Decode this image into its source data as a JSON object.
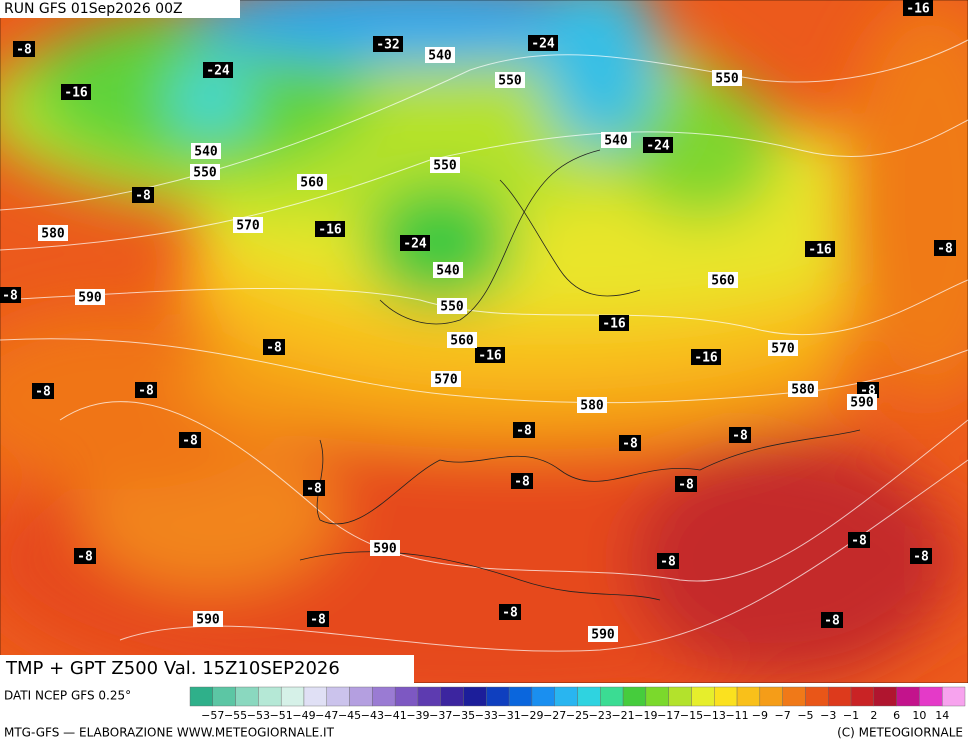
{
  "header": {
    "run": "RUN GFS 01Sep2026 00Z"
  },
  "map": {
    "temperature_labels": [
      "-8",
      "-16",
      "-24",
      "-32",
      "-24",
      "-16",
      "-24",
      "-8",
      "-16",
      "-24",
      "-16",
      "-8",
      "-8",
      "-16",
      "-8",
      "-16",
      "-16",
      "-8",
      "-8",
      "-8",
      "-8",
      "-8",
      "-8",
      "-8",
      "-8",
      "-8",
      "-8",
      "-8",
      "-8",
      "-8",
      "-8",
      "-8",
      "-8",
      "-8"
    ],
    "height_labels": [
      "540",
      "550",
      "550",
      "540",
      "550",
      "540",
      "550",
      "560",
      "570",
      "580",
      "540",
      "560",
      "590",
      "550",
      "560",
      "570",
      "570",
      "580",
      "590",
      "580",
      "590",
      "590",
      "590"
    ]
  },
  "footer": {
    "title": "TMP + GPT Z500 Val. 15Z10SEP2026",
    "source": "DATI NCEP GFS 0.25°",
    "scale_labels": [
      "−57",
      "−55",
      "−53",
      "−51",
      "−49",
      "−47",
      "−45",
      "−43",
      "−41",
      "−39",
      "−37",
      "−35",
      "−33",
      "−31",
      "−29",
      "−27",
      "−25",
      "−23",
      "−21",
      "−19",
      "−17",
      "−15",
      "−13",
      "−11",
      "−9",
      "−7",
      "−5",
      "−3",
      "−1",
      "2",
      "6",
      "10",
      "14"
    ],
    "scale_colors": [
      "#2fb08a",
      "#5cc6a4",
      "#8ad8bf",
      "#b5e8d6",
      "#d6f1e8",
      "#e0e0f5",
      "#cbc3ec",
      "#b49fe0",
      "#9a7bd3",
      "#7d58c2",
      "#5d3bb0",
      "#3c259f",
      "#1c1e9a",
      "#0f3fbf",
      "#0a66dd",
      "#1a8ff0",
      "#29b5f0",
      "#2fd3e0",
      "#3bdc93",
      "#46cc3d",
      "#7bd92c",
      "#b3e22c",
      "#e6ee2c",
      "#fbe11f",
      "#f9c01a",
      "#f59d18",
      "#f07918",
      "#e95618",
      "#dd3a1c",
      "#c92325",
      "#b0152f",
      "#c3138c",
      "#e43ac8",
      "#f7a3ee"
    ],
    "credit_left": "MTG-GFS — ELABORAZIONE WWW.METEOGIORNALE.IT",
    "credit_right": "(C) METEOGIORNALE"
  }
}
